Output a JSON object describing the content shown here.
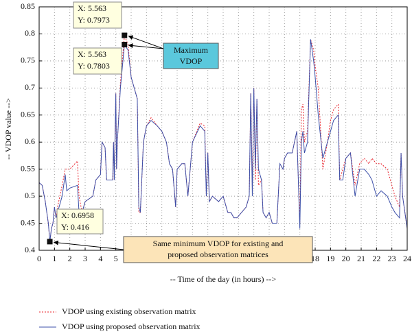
{
  "chart_data": {
    "type": "line",
    "xlabel": "-- Time of the day (in hours) -->",
    "ylabel": "-- VDOP value -->",
    "xlim": [
      0,
      24
    ],
    "ylim": [
      0.4,
      0.85
    ],
    "xticks": [
      0,
      1,
      2,
      3,
      4,
      5,
      6,
      7,
      8,
      9,
      10,
      11,
      12,
      13,
      14,
      15,
      16,
      17,
      18,
      19,
      20,
      21,
      22,
      23,
      24
    ],
    "yticks": [
      0.4,
      0.45,
      0.5,
      0.55,
      0.6,
      0.65,
      0.7,
      0.75,
      0.8,
      0.85
    ],
    "grid": true,
    "legend": "bottom",
    "x": [
      0,
      0.2,
      0.4,
      0.5,
      0.6,
      0.7,
      0.8,
      0.9,
      1.0,
      1.1,
      1.2,
      1.5,
      1.7,
      1.8,
      2.0,
      2.5,
      2.6,
      2.8,
      3.0,
      3.5,
      3.7,
      4.0,
      4.1,
      4.3,
      4.4,
      4.8,
      4.85,
      4.9,
      5.0,
      5.05,
      5.1,
      5.3,
      5.563,
      5.8,
      6.0,
      6.2,
      6.4,
      6.5,
      6.6,
      6.8,
      7.0,
      7.3,
      7.7,
      8.0,
      8.3,
      8.5,
      8.7,
      8.9,
      9.0,
      9.3,
      9.5,
      9.7,
      10.0,
      10.5,
      10.8,
      10.9,
      11.0,
      11.1,
      11.3,
      11.7,
      12.0,
      12.3,
      12.5,
      12.7,
      12.9,
      13.2,
      13.5,
      13.7,
      13.8,
      13.9,
      14.0,
      14.1,
      14.2,
      14.3,
      14.5,
      14.6,
      14.8,
      15.0,
      15.2,
      15.5,
      15.7,
      15.9,
      16.0,
      16.2,
      16.5,
      16.8,
      17.0,
      17.1,
      17.2,
      17.3,
      17.5,
      17.7,
      17.9,
      18.0,
      18.2,
      18.5,
      18.8,
      19.0,
      19.2,
      19.5,
      19.6,
      19.8,
      20.0,
      20.3,
      20.6,
      20.9,
      21.2,
      21.5,
      21.7,
      22.0,
      22.3,
      22.7,
      23.0,
      23.2,
      23.5,
      23.6,
      23.7,
      24
    ],
    "series": [
      {
        "name": "VDOP using existing observation matrix",
        "color": "#e8202a",
        "dash": true,
        "values": [
          0.525,
          0.52,
          0.49,
          0.47,
          0.45,
          0.416,
          0.44,
          0.45,
          0.48,
          0.46,
          0.48,
          0.52,
          0.55,
          0.55,
          0.55,
          0.565,
          0.5,
          0.47,
          0.49,
          0.5,
          0.53,
          0.54,
          0.6,
          0.59,
          0.53,
          0.53,
          0.6,
          0.53,
          0.69,
          0.55,
          0.6,
          0.71,
          0.7973,
          0.78,
          0.72,
          0.7,
          0.68,
          0.47,
          0.47,
          0.6,
          0.63,
          0.645,
          0.63,
          0.62,
          0.6,
          0.56,
          0.55,
          0.48,
          0.55,
          0.56,
          0.56,
          0.5,
          0.6,
          0.635,
          0.63,
          0.5,
          0.58,
          0.49,
          0.5,
          0.49,
          0.5,
          0.47,
          0.47,
          0.46,
          0.46,
          0.47,
          0.48,
          0.5,
          0.69,
          0.52,
          0.7,
          0.53,
          0.68,
          0.52,
          0.53,
          0.47,
          0.46,
          0.47,
          0.45,
          0.45,
          0.56,
          0.55,
          0.57,
          0.58,
          0.58,
          0.62,
          0.45,
          0.66,
          0.67,
          0.6,
          0.62,
          0.79,
          0.77,
          0.74,
          0.7,
          0.55,
          0.6,
          0.64,
          0.66,
          0.67,
          0.53,
          0.55,
          0.57,
          0.58,
          0.52,
          0.56,
          0.57,
          0.56,
          0.57,
          0.56,
          0.56,
          0.55,
          0.52,
          0.5,
          0.48,
          0.58,
          0.5,
          0.44
        ]
      },
      {
        "name": "VDOP using proposed observation matrix",
        "color": "#3b4fa8",
        "dash": false,
        "values": [
          0.525,
          0.52,
          0.49,
          0.47,
          0.45,
          0.416,
          0.44,
          0.45,
          0.48,
          0.46,
          0.47,
          0.5,
          0.54,
          0.51,
          0.515,
          0.52,
          0.47,
          0.47,
          0.49,
          0.5,
          0.53,
          0.54,
          0.6,
          0.59,
          0.53,
          0.53,
          0.6,
          0.53,
          0.69,
          0.55,
          0.6,
          0.7,
          0.7803,
          0.77,
          0.72,
          0.7,
          0.68,
          0.48,
          0.47,
          0.6,
          0.63,
          0.64,
          0.63,
          0.62,
          0.6,
          0.56,
          0.55,
          0.48,
          0.55,
          0.56,
          0.56,
          0.5,
          0.6,
          0.63,
          0.62,
          0.5,
          0.58,
          0.49,
          0.5,
          0.49,
          0.5,
          0.47,
          0.47,
          0.46,
          0.46,
          0.47,
          0.48,
          0.5,
          0.69,
          0.5,
          0.7,
          0.55,
          0.68,
          0.55,
          0.53,
          0.47,
          0.46,
          0.47,
          0.45,
          0.45,
          0.56,
          0.55,
          0.57,
          0.58,
          0.58,
          0.62,
          0.44,
          0.6,
          0.62,
          0.58,
          0.6,
          0.79,
          0.75,
          0.72,
          0.65,
          0.57,
          0.6,
          0.62,
          0.64,
          0.65,
          0.53,
          0.53,
          0.57,
          0.58,
          0.5,
          0.55,
          0.55,
          0.54,
          0.53,
          0.5,
          0.51,
          0.5,
          0.48,
          0.47,
          0.46,
          0.58,
          0.5,
          0.44
        ]
      }
    ],
    "datatips": [
      {
        "lines": [
          "X: 5.563",
          "Y: 0.7973"
        ],
        "x": 5.563,
        "y": 0.7973
      },
      {
        "lines": [
          "X: 5.563",
          "Y: 0.7803"
        ],
        "x": 5.563,
        "y": 0.7803
      },
      {
        "lines": [
          "X: 0.6958",
          "Y: 0.416"
        ],
        "x": 0.6958,
        "y": 0.416
      }
    ],
    "callouts": [
      {
        "lines": [
          "Maximum",
          "VDOP"
        ],
        "color": "#5bc8dc"
      },
      {
        "lines": [
          "Same minimum VDOP for existing and",
          "proposed observation matrices"
        ],
        "color": "#fce4b8"
      }
    ]
  }
}
